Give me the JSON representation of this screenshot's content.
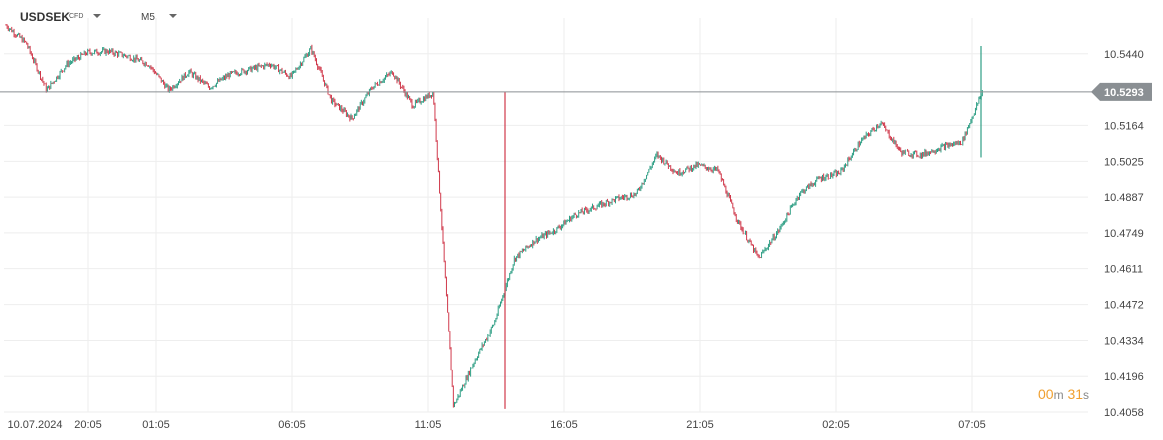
{
  "header": {
    "symbol": "USDSEK",
    "badge": "CFD",
    "timeframe": "M5"
  },
  "countdown": {
    "minutes": "00",
    "min_unit": "m",
    "seconds": "31",
    "sec_unit": "s"
  },
  "colors": {
    "up": "#2e9e84",
    "down": "#d0394b",
    "grid": "#eeeeee",
    "price_line": "#8a8f93",
    "tag": "#8a8f93"
  },
  "chart_data": {
    "type": "candlestick",
    "title": "USDSEK",
    "xlabel": "",
    "ylabel": "",
    "ylim": [
      10.4058,
      10.5578
    ],
    "y_ticks": [
      "10.5440",
      "10.5164",
      "10.5025",
      "10.4887",
      "10.4749",
      "10.4611",
      "10.4472",
      "10.4334",
      "10.4196",
      "10.4058"
    ],
    "x_ticks": [
      "10.07.2024",
      "20:05",
      "01:05",
      "06:05",
      "11:05",
      "16:05",
      "21:05",
      "02:05",
      "07:05"
    ],
    "current_price": "10.5293",
    "grid": true,
    "series_approx_close": [
      {
        "t": "19:10",
        "c": 10.555
      },
      {
        "t": "20:00",
        "c": 10.548
      },
      {
        "t": "20:20",
        "c": 10.53
      },
      {
        "t": "21:00",
        "c": 10.54
      },
      {
        "t": "22:00",
        "c": 10.5445
      },
      {
        "t": "23:00",
        "c": 10.545
      },
      {
        "t": "00:00",
        "c": 10.543
      },
      {
        "t": "01:00",
        "c": 10.54
      },
      {
        "t": "02:00",
        "c": 10.53
      },
      {
        "t": "03:00",
        "c": 10.537
      },
      {
        "t": "04:00",
        "c": 10.531
      },
      {
        "t": "05:00",
        "c": 10.536
      },
      {
        "t": "06:00",
        "c": 10.538
      },
      {
        "t": "07:00",
        "c": 10.54
      },
      {
        "t": "08:00",
        "c": 10.535
      },
      {
        "t": "09:00",
        "c": 10.546
      },
      {
        "t": "10:00",
        "c": 10.526
      },
      {
        "t": "11:00",
        "c": 10.519
      },
      {
        "t": "11:30",
        "c": 10.531
      },
      {
        "t": "12:10",
        "c": 10.537
      },
      {
        "t": "13:00",
        "c": 10.524
      },
      {
        "t": "14:00",
        "c": 10.529
      },
      {
        "t": "14:20",
        "c": 10.408
      },
      {
        "t": "14:35",
        "c": 10.425
      },
      {
        "t": "15:00",
        "c": 10.44
      },
      {
        "t": "15:30",
        "c": 10.465
      },
      {
        "t": "16:00",
        "c": 10.472
      },
      {
        "t": "16:30",
        "c": 10.476
      },
      {
        "t": "17:00",
        "c": 10.482
      },
      {
        "t": "17:30",
        "c": 10.485
      },
      {
        "t": "18:00",
        "c": 10.488
      },
      {
        "t": "18:45",
        "c": 10.49
      },
      {
        "t": "19:30",
        "c": 10.505
      },
      {
        "t": "20:30",
        "c": 10.498
      },
      {
        "t": "21:15",
        "c": 10.501
      },
      {
        "t": "22:00",
        "c": 10.499
      },
      {
        "t": "22:30",
        "c": 10.479
      },
      {
        "t": "23:00",
        "c": 10.465
      },
      {
        "t": "23:30",
        "c": 10.476
      },
      {
        "t": "00:00",
        "c": 10.49
      },
      {
        "t": "00:40",
        "c": 10.496
      },
      {
        "t": "01:20",
        "c": 10.498
      },
      {
        "t": "02:05",
        "c": 10.51
      },
      {
        "t": "03:00",
        "c": 10.5175
      },
      {
        "t": "04:00",
        "c": 10.506
      },
      {
        "t": "05:00",
        "c": 10.505
      },
      {
        "t": "06:00",
        "c": 10.508
      },
      {
        "t": "06:50",
        "c": 10.51
      },
      {
        "t": "07:10",
        "c": 10.5293
      }
    ]
  }
}
